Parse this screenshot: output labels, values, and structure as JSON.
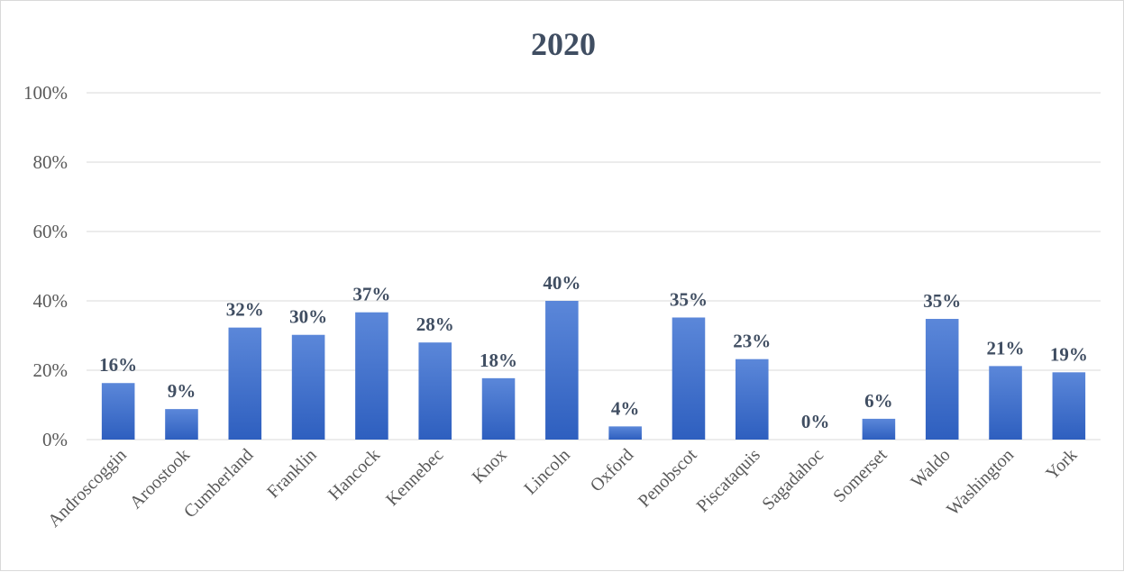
{
  "chart_data": {
    "type": "bar",
    "title": "2020",
    "xlabel": "",
    "ylabel": "",
    "ylim": [
      0,
      1
    ],
    "yticks": [
      "0%",
      "20%",
      "40%",
      "60%",
      "80%",
      "100%"
    ],
    "grid": true,
    "categories": [
      "Androscoggin",
      "Aroostook",
      "Cumberland",
      "Franklin",
      "Hancock",
      "Kennebec",
      "Knox",
      "Lincoln",
      "Oxford",
      "Penobscot",
      "Piscataquis",
      "Sagadahoc",
      "Somerset",
      "Waldo",
      "Washington",
      "York"
    ],
    "values": [
      0.163,
      0.088,
      0.323,
      0.302,
      0.367,
      0.28,
      0.177,
      0.4,
      0.038,
      0.352,
      0.232,
      0.0,
      0.06,
      0.348,
      0.212,
      0.194
    ],
    "data_labels": [
      "16%",
      "9%",
      "32%",
      "30%",
      "37%",
      "28%",
      "18%",
      "40%",
      "4%",
      "35%",
      "23%",
      "0%",
      "6%",
      "35%",
      "21%",
      "19%"
    ],
    "colors": {
      "bar_top": "#5b87d9",
      "bar_bottom": "#2e5fbf",
      "grid": "#d9d9d9",
      "axis_text": "#595959",
      "title": "#404e62"
    }
  }
}
